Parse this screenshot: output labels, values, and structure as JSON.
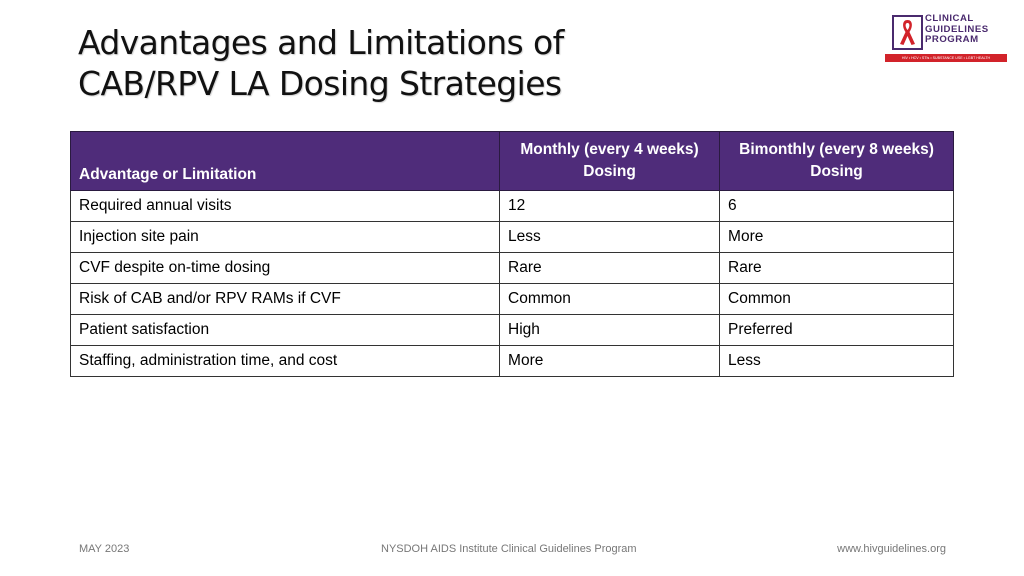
{
  "title": {
    "line1": "Advantages and Limitations of",
    "line2": "CAB/RPV LA Dosing Strategies"
  },
  "logo": {
    "line1": "CLINICAL",
    "line2": "GUIDELINES",
    "line3": "PROGRAM",
    "tagline": "HIV • HCV • STIs • SUBSTANCE USE • LGBT HEALTH",
    "icon": "red-ribbon-icon",
    "accent_color": "#d2232a",
    "text_color": "#4a2a6e"
  },
  "table": {
    "header_color": "#4f2c7a",
    "headers": [
      {
        "line1": "Advantage or Limitation",
        "line2": ""
      },
      {
        "line1": "Monthly (every 4 weeks)",
        "line2": "Dosing"
      },
      {
        "line1": "Bimonthly (every 8 weeks)",
        "line2": "Dosing"
      }
    ],
    "rows": [
      [
        "Required annual visits",
        "12",
        "6"
      ],
      [
        "Injection site pain",
        "Less",
        "More"
      ],
      [
        "CVF despite on-time dosing",
        "Rare",
        "Rare"
      ],
      [
        "Risk of CAB and/or RPV RAMs if CVF",
        "Common",
        "Common"
      ],
      [
        "Patient satisfaction",
        "High",
        "Preferred"
      ],
      [
        "Staffing, administration time, and cost",
        "More",
        "Less"
      ]
    ]
  },
  "footer": {
    "date": "MAY 2023",
    "center": "NYSDOH AIDS Institute Clinical Guidelines Program",
    "url": "www.hivguidelines.org"
  }
}
